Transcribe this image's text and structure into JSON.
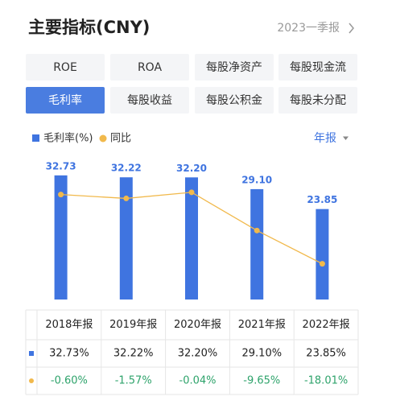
{
  "header": {
    "title": "主要指标(CNY)",
    "period": "2023一季报"
  },
  "tabs": [
    "ROE",
    "ROA",
    "每股净资产",
    "每股现金流",
    "毛利率",
    "每股收益",
    "每股公积金",
    "每股未分配"
  ],
  "active_tab": 4,
  "period_selector": "年报",
  "chart_data": {
    "type": "bar",
    "categories": [
      "2018年报",
      "2019年报",
      "2020年报",
      "2021年报",
      "2022年报"
    ],
    "series": [
      {
        "name": "毛利率(%)",
        "color": "#3f74e0",
        "values": [
          32.73,
          32.22,
          32.2,
          29.1,
          23.85
        ],
        "value_labels": [
          "32.73",
          "32.22",
          "32.20",
          "29.10",
          "23.85"
        ]
      },
      {
        "name": "同比",
        "color": "#f1b94c",
        "type": "line",
        "axis": "y2",
        "values": [
          -0.6,
          -1.57,
          -0.04,
          -9.65,
          -18.01
        ]
      }
    ],
    "ylim": [
      0,
      38
    ],
    "y2lim": [
      -27,
      9.25
    ]
  },
  "table": {
    "rows": [
      [
        "32.73%",
        "32.22%",
        "32.20%",
        "29.10%",
        "23.85%"
      ],
      [
        "-0.60%",
        "-1.57%",
        "-0.04%",
        "-9.65%",
        "-18.01%"
      ]
    ]
  }
}
